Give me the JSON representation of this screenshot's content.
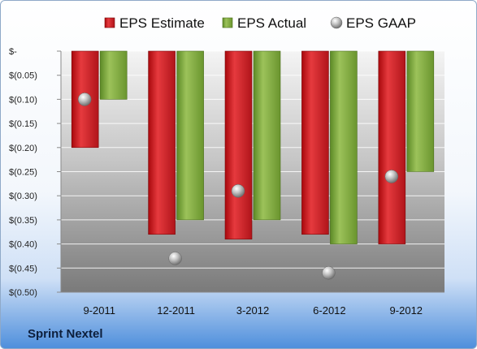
{
  "company": "Sprint Nextel",
  "chart_data": {
    "type": "bar",
    "categories": [
      "9-2011",
      "12-2011",
      "3-2012",
      "6-2012",
      "9-2012"
    ],
    "series": [
      {
        "name": "EPS Estimate",
        "type": "bar",
        "color": "#d21e22",
        "values": [
          -0.2,
          -0.38,
          -0.39,
          -0.38,
          -0.4
        ]
      },
      {
        "name": "EPS Actual",
        "type": "bar",
        "color": "#7fa83c",
        "values": [
          -0.1,
          -0.35,
          -0.35,
          -0.4,
          -0.25
        ]
      },
      {
        "name": "EPS GAAP",
        "type": "scatter",
        "color": "#a9a9a9",
        "values": [
          -0.1,
          -0.43,
          -0.29,
          -0.46,
          -0.26
        ]
      }
    ],
    "yticks": [
      "$-",
      "$(0.05)",
      "$(0.10)",
      "$(0.15)",
      "$(0.20)",
      "$(0.25)",
      "$(0.30)",
      "$(0.35)",
      "$(0.40)",
      "$(0.45)",
      "$(0.50)"
    ],
    "ylim": [
      -0.5,
      0
    ],
    "legend": "top",
    "grid": true
  }
}
